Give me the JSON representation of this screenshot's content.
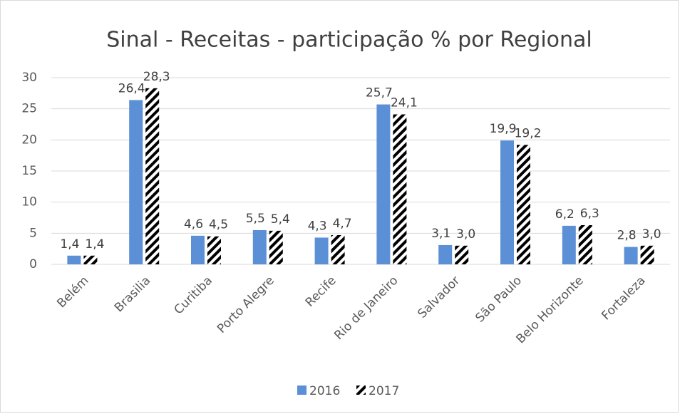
{
  "chart_data": {
    "type": "bar",
    "title": "Sinal - Receitas - participação % por Regional",
    "categories": [
      "Belém",
      "Brasilia",
      "Curitiba",
      "Porto Alegre",
      "Recife",
      "Rio de Janeiro",
      "Salvador",
      "São Paulo",
      "Belo Horizonte",
      "Fortaleza"
    ],
    "series": [
      {
        "name": "2016",
        "color": "#5b8fd6",
        "pattern": "solid",
        "values": [
          1.4,
          26.4,
          4.6,
          5.5,
          4.3,
          25.7,
          3.1,
          19.9,
          6.2,
          2.8
        ],
        "value_labels": [
          "1,4",
          "26,4",
          "4,6",
          "5,5",
          "4,3",
          "25,7",
          "3,1",
          "19,9",
          "6,2",
          "2,8"
        ]
      },
      {
        "name": "2017",
        "color": "#000000",
        "pattern": "hatch",
        "values": [
          1.4,
          28.3,
          4.5,
          5.4,
          4.7,
          24.1,
          3.0,
          19.2,
          6.3,
          3.0
        ],
        "value_labels": [
          "1,4",
          "28,3",
          "4,5",
          "5,4",
          "4,7",
          "24,1",
          "3,0",
          "19,2",
          "6,3",
          "3,0"
        ]
      }
    ],
    "ylim": [
      0,
      30
    ],
    "yticks": [
      0,
      5,
      10,
      15,
      20,
      25,
      30
    ],
    "grid": true,
    "legend": "bottom"
  }
}
